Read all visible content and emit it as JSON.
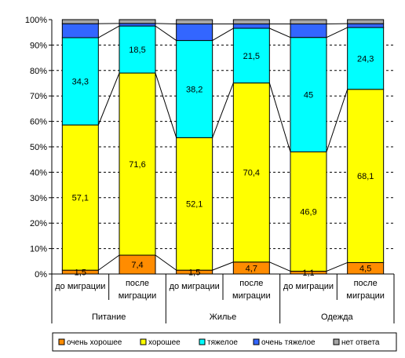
{
  "chart_data": {
    "type": "bar",
    "stacked": "percent",
    "ylim": [
      0,
      100
    ],
    "yticks": [
      "0%",
      "10%",
      "20%",
      "30%",
      "40%",
      "50%",
      "60%",
      "70%",
      "80%",
      "90%",
      "100%"
    ],
    "grid": true,
    "legend_position": "bottom",
    "categories": [
      "до миграции",
      "после миграции",
      "до миграции",
      "после миграции",
      "до миграции",
      "после миграции"
    ],
    "category_lines": [
      [
        "до миграции"
      ],
      [
        "после",
        "миграции"
      ],
      [
        "до миграции"
      ],
      [
        "после",
        "миграции"
      ],
      [
        "до миграции"
      ],
      [
        "после",
        "миграции"
      ]
    ],
    "groups": [
      {
        "label": "Питание",
        "span": [
          0,
          1
        ]
      },
      {
        "label": "Жилье",
        "span": [
          2,
          3
        ]
      },
      {
        "label": "Одежда",
        "span": [
          4,
          5
        ]
      }
    ],
    "series": [
      {
        "name": "очень хорошее",
        "color": "#ff8c00",
        "values": [
          1.5,
          7.4,
          1.5,
          4.7,
          1.1,
          4.5
        ],
        "labels": [
          "1,5",
          "7,4",
          "1,5",
          "4,7",
          "1,1",
          "4,5"
        ]
      },
      {
        "name": "хорошее",
        "color": "#ffff00",
        "values": [
          57.1,
          71.6,
          52.1,
          70.4,
          46.9,
          68.1
        ],
        "labels": [
          "57,1",
          "71,6",
          "52,1",
          "70,4",
          "46,9",
          "68,1"
        ]
      },
      {
        "name": "тяжелое",
        "color": "#00ffff",
        "values": [
          34.3,
          18.5,
          38.2,
          21.5,
          45,
          24.3
        ],
        "labels": [
          "34,3",
          "18,5",
          "38,2",
          "21,5",
          "45",
          "24,3"
        ]
      },
      {
        "name": "очень тяжелое",
        "color": "#3366ff",
        "values": [
          5.5,
          1.0,
          6.5,
          1.7,
          5.3,
          1.5
        ],
        "labels": [
          "",
          "",
          "",
          "",
          "",
          ""
        ]
      },
      {
        "name": "нет ответа",
        "color": "#a6a6a6",
        "values": [
          1.6,
          1.5,
          1.7,
          1.7,
          1.7,
          1.6
        ],
        "labels": [
          "",
          "",
          "",
          "",
          "",
          ""
        ]
      }
    ]
  }
}
